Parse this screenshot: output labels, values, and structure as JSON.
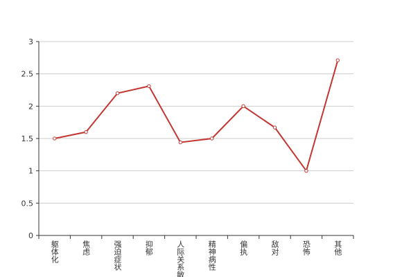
{
  "chart_data": {
    "type": "line",
    "categories": [
      "躯体化",
      "焦虑",
      "强迫症状",
      "抑郁",
      "人际关系敏感",
      "精神病性",
      "偏执",
      "敌对",
      "恐怖",
      "其他"
    ],
    "values": [
      1.5,
      1.6,
      2.2,
      2.31,
      1.44,
      1.5,
      2.0,
      1.67,
      1.0,
      2.71
    ],
    "color": "#c23531",
    "ylim": [
      0,
      3
    ],
    "yticks": [
      0,
      0.5,
      1,
      1.5,
      2,
      2.5,
      3
    ],
    "grid": true
  }
}
